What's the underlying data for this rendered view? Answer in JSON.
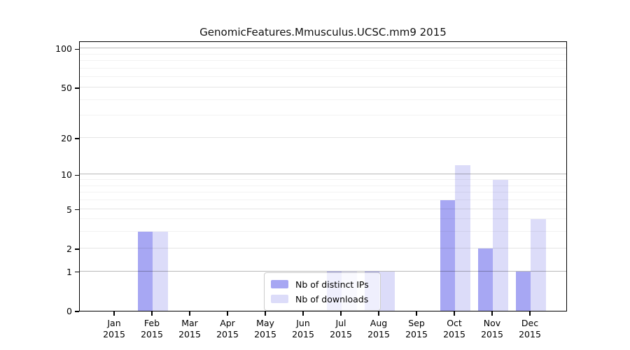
{
  "chart_data": {
    "type": "bar",
    "title": "GenomicFeatures.Mmusculus.UCSC.mm9 2015",
    "categories": [
      "Jan",
      "Feb",
      "Mar",
      "Apr",
      "May",
      "Jun",
      "Jul",
      "Aug",
      "Sep",
      "Oct",
      "Nov",
      "Dec"
    ],
    "category_year": "2015",
    "series": [
      {
        "name": "Nb of distinct IPs",
        "color": "#a7a7f3",
        "values": [
          0,
          3,
          0,
          0,
          0,
          0,
          1,
          1,
          0,
          6,
          2,
          1
        ]
      },
      {
        "name": "Nb of downloads",
        "color": "#dcdcf9",
        "values": [
          0,
          3,
          0,
          0,
          0,
          0,
          1,
          1,
          0,
          12,
          9,
          4
        ]
      }
    ],
    "xlabel": "",
    "ylabel": "",
    "y_axis": {
      "scale": "log10(1+x)",
      "major_ticks": [
        0,
        1,
        2,
        5,
        10,
        20,
        50,
        100
      ],
      "emphasized_ticks": [
        1,
        10,
        100
      ],
      "minor_ticks": [
        3,
        4,
        6,
        7,
        8,
        9,
        30,
        40,
        60,
        70,
        80,
        90
      ],
      "ylim": [
        0,
        115
      ]
    },
    "grid": "horizontal",
    "legend_position": "inside-bottom-center"
  }
}
